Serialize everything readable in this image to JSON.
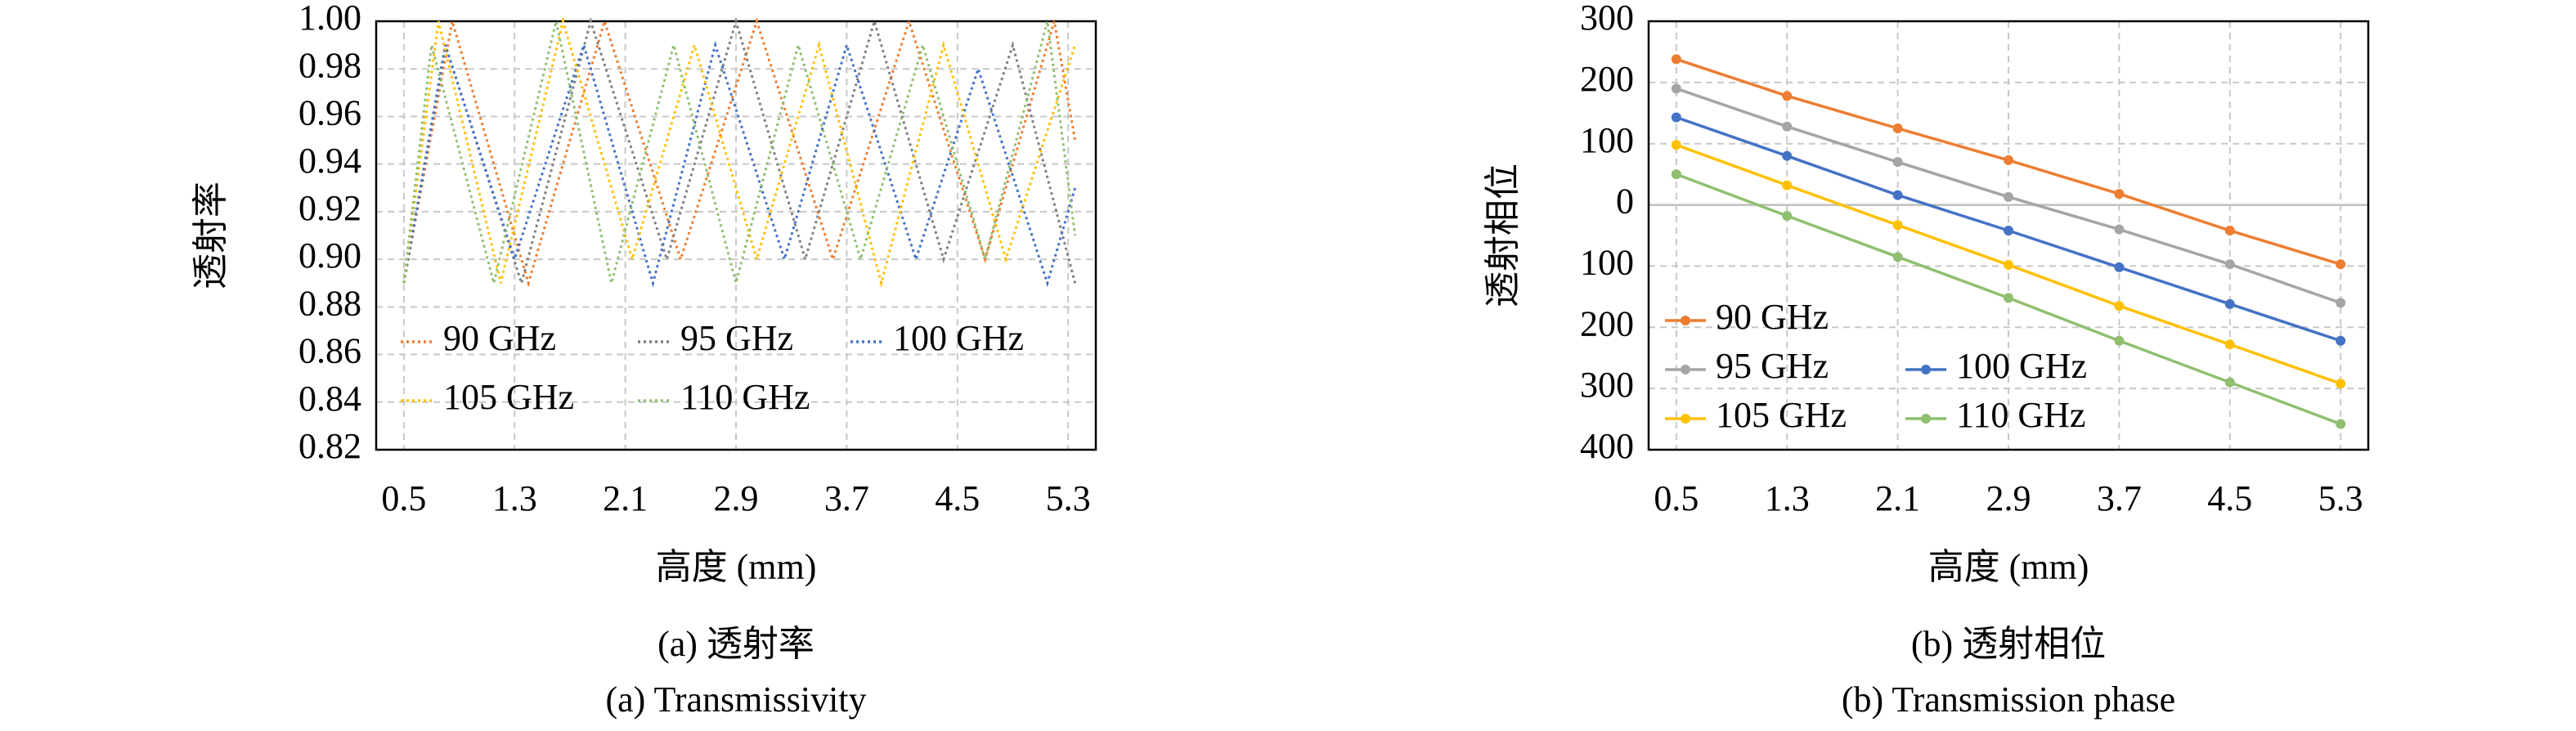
{
  "chart_data": [
    {
      "type": "line",
      "line_style": "dotted",
      "markers": false,
      "grid": true,
      "legend": "lower left",
      "y_label": "透射率",
      "x_label": "高度 (mm)",
      "caption": "(a) 透射率",
      "caption_en": "(a) Transmissivity",
      "xlim": [
        0.3,
        5.5
      ],
      "xticks": [
        0.5,
        1.3,
        2.1,
        2.9,
        3.7,
        4.5,
        5.3
      ],
      "ylim": [
        0.82,
        1.0
      ],
      "yticks": [
        0.82,
        0.84,
        0.86,
        0.88,
        {
          "value": 0.9,
          "label": "0.90"
        },
        0.92,
        0.94,
        0.96,
        0.98,
        {
          "value": 1.0,
          "label": "1.00"
        }
      ],
      "series": [
        {
          "name": "90 GHz",
          "color": "#ed7d31",
          "x": [
            0.5,
            0.85,
            1.4,
            1.95,
            2.5,
            3.05,
            3.6,
            4.15,
            4.7,
            5.2,
            5.35
          ],
          "values": [
            0.89,
            1.0,
            0.89,
            1.0,
            0.9,
            1.0,
            0.9,
            1.0,
            0.9,
            1.0,
            0.95
          ]
        },
        {
          "name": "95 GHz",
          "color": "#7f7f7f",
          "x": [
            0.5,
            0.8,
            1.35,
            1.85,
            2.4,
            2.9,
            3.4,
            3.9,
            4.4,
            4.9,
            5.35
          ],
          "values": [
            0.89,
            0.99,
            0.89,
            1.0,
            0.9,
            1.0,
            0.9,
            1.0,
            0.9,
            0.99,
            0.89
          ]
        },
        {
          "name": "100 GHz",
          "color": "#4472c4",
          "x": [
            0.5,
            0.8,
            1.3,
            1.8,
            2.3,
            2.75,
            3.25,
            3.7,
            4.2,
            4.65,
            5.15,
            5.35
          ],
          "values": [
            0.89,
            0.99,
            0.9,
            0.99,
            0.89,
            0.99,
            0.9,
            0.99,
            0.9,
            0.98,
            0.89,
            0.93
          ]
        },
        {
          "name": "105 GHz",
          "color": "#ffc000",
          "x": [
            0.5,
            0.75,
            1.2,
            1.65,
            2.15,
            2.6,
            3.05,
            3.5,
            3.95,
            4.4,
            4.85,
            5.35
          ],
          "values": [
            0.89,
            1.0,
            0.89,
            1.0,
            0.9,
            0.99,
            0.9,
            0.99,
            0.89,
            0.99,
            0.9,
            0.99
          ]
        },
        {
          "name": "110 GHz",
          "color": "#8fbf6f",
          "x": [
            0.5,
            0.7,
            1.15,
            1.6,
            2.0,
            2.45,
            2.9,
            3.35,
            3.8,
            4.25,
            4.7,
            5.15,
            5.35
          ],
          "values": [
            0.89,
            0.99,
            0.89,
            1.0,
            0.89,
            0.99,
            0.89,
            0.99,
            0.9,
            0.99,
            0.9,
            1.0,
            0.91
          ]
        }
      ]
    },
    {
      "type": "line",
      "line_style": "solid",
      "markers": true,
      "grid": true,
      "legend": "lower left",
      "y_label": "透射相位",
      "x_label": "高度 (mm)",
      "caption": "(b) 透射相位",
      "caption_en": "(b) Transmission phase",
      "x": [
        0.5,
        1.3,
        2.1,
        2.9,
        3.7,
        4.5,
        5.3
      ],
      "xlim": [
        0.3,
        5.5
      ],
      "xticks": [
        0.5,
        1.3,
        2.1,
        2.9,
        3.7,
        4.5,
        5.3
      ],
      "ylim": [
        -400,
        300
      ],
      "yticks": [
        300,
        200,
        100,
        0,
        {
          "value": -100,
          "label": "100"
        },
        {
          "value": -200,
          "label": "200"
        },
        {
          "value": -300,
          "label": "300"
        },
        {
          "value": -400,
          "label": "400"
        }
      ],
      "series": [
        {
          "name": "90 GHz",
          "color": "#ed7d31",
          "values": [
            238,
            178,
            125,
            73,
            18,
            -42,
            -97
          ]
        },
        {
          "name": "95 GHz",
          "color": "#a5a5a5",
          "values": [
            190,
            128,
            70,
            13,
            -40,
            -97,
            -160
          ]
        },
        {
          "name": "100 GHz",
          "color": "#4472c4",
          "values": [
            143,
            80,
            16,
            -42,
            -102,
            -162,
            -222
          ]
        },
        {
          "name": "105 GHz",
          "color": "#ffc000",
          "values": [
            98,
            32,
            -33,
            -98,
            -165,
            -228,
            -292
          ]
        },
        {
          "name": "110 GHz",
          "color": "#8fbf6f",
          "values": [
            50,
            -18,
            -85,
            -152,
            -222,
            -290,
            -358
          ]
        }
      ]
    }
  ]
}
